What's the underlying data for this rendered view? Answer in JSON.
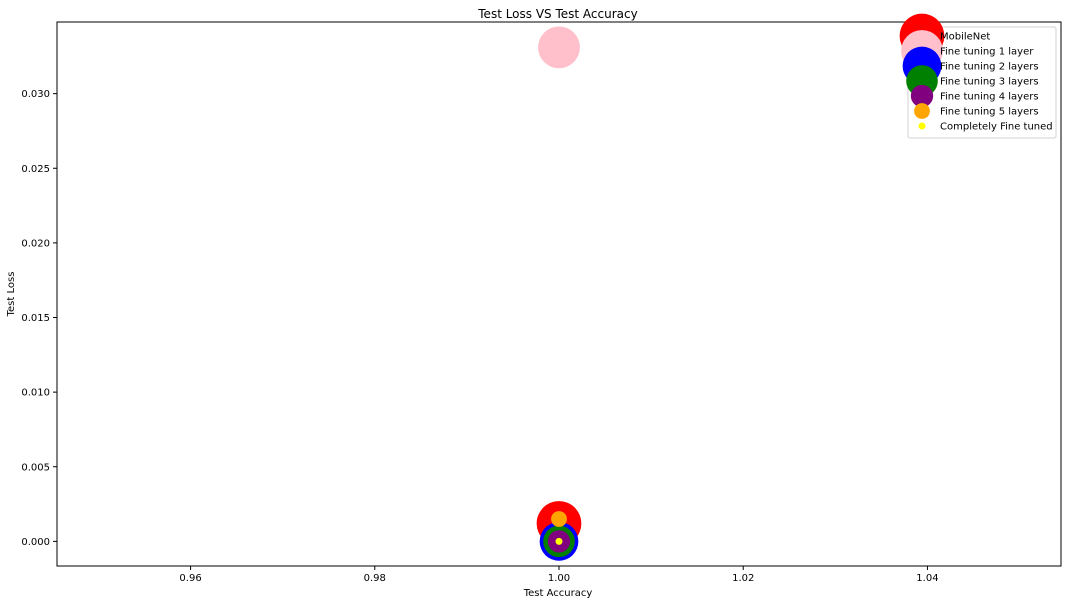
{
  "chart_data": {
    "type": "scatter",
    "title": "Test Loss VS Test Accuracy",
    "xlabel": "Test Accuracy",
    "ylabel": "Test Loss",
    "xlim": [
      0.9455,
      1.0545
    ],
    "ylim": [
      -0.00165,
      0.0348
    ],
    "xticks": [
      0.96,
      0.98,
      1.0,
      1.02,
      1.04
    ],
    "xtick_labels": [
      "0.96",
      "0.98",
      "1.00",
      "1.02",
      "1.04"
    ],
    "yticks": [
      0.0,
      0.005,
      0.01,
      0.015,
      0.02,
      0.025,
      0.03
    ],
    "ytick_labels": [
      "0.000",
      "0.005",
      "0.010",
      "0.015",
      "0.020",
      "0.025",
      "0.030"
    ],
    "grid": false,
    "legend_position": "top-right",
    "series": [
      {
        "name": "MobileNet",
        "color": "#ff0000",
        "marker_size": 2000,
        "points": [
          {
            "x": 1.0,
            "y": 0.0012
          }
        ]
      },
      {
        "name": "Fine tuning 1 layer",
        "color": "#ffc0cb",
        "marker_size": 1750,
        "points": [
          {
            "x": 1.0,
            "y": 0.0331
          }
        ]
      },
      {
        "name": "Fine tuning 2 layers",
        "color": "#0000ff",
        "marker_size": 1500,
        "points": [
          {
            "x": 1.0,
            "y": 0.0
          }
        ]
      },
      {
        "name": "Fine tuning 3 layers",
        "color": "#008000",
        "marker_size": 1000,
        "points": [
          {
            "x": 1.0,
            "y": 0.0
          }
        ]
      },
      {
        "name": "Fine tuning 4 layers",
        "color": "#800080",
        "marker_size": 500,
        "points": [
          {
            "x": 1.0,
            "y": 0.0
          }
        ]
      },
      {
        "name": "Fine tuning 5 layers",
        "color": "#ffa500",
        "marker_size": 250,
        "points": [
          {
            "x": 1.0,
            "y": 0.0015
          }
        ]
      },
      {
        "name": "Completely Fine tuned",
        "color": "#ffff00",
        "marker_size": 50,
        "points": [
          {
            "x": 1.0,
            "y": 0.0
          }
        ]
      }
    ]
  }
}
